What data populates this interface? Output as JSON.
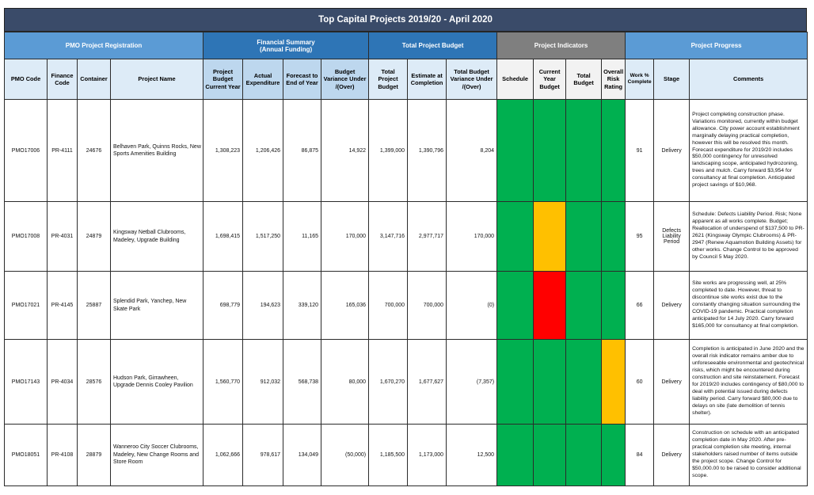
{
  "title": "Top Capital Projects 2019/20 - April 2020",
  "groups": {
    "pmo": "PMO Project Registration",
    "financial": "Financial Summary\n(Annual Funding)",
    "total_budget": "Total Project Budget",
    "indicators": "Project Indicators",
    "progress": "Project Progress"
  },
  "columns": {
    "pmo_code": "PMO Code",
    "finance_code": "Finance Code",
    "container": "Container",
    "project_name": "Project Name",
    "project_budget": "Project Budget Current Year",
    "actual_expenditure": "Actual Expenditure",
    "forecast": "Forecast to End of Year",
    "budget_variance": "Budget Variance Under /(Over)",
    "total_project_budget": "Total Project Budget",
    "estimate": "Estimate at Completion",
    "total_variance": "Total Budget Variance Under /(Over)",
    "schedule": "Schedule",
    "current_year_budget": "Current Year Budget",
    "total_budget": "Total Budget",
    "overall_risk": "Overall Risk Rating",
    "work_complete": "Work % Complete",
    "stage": "Stage",
    "comments": "Comments"
  },
  "colors": {
    "green": "#00b050",
    "amber": "#ffc000",
    "red": "#ff0000"
  },
  "rows": [
    {
      "pmo_code": "PMO17006",
      "finance_code": "PR-4111",
      "container": "24676",
      "project_name": "Belhaven Park, Quinns Rocks, New Sports Amenities Building",
      "project_budget": "1,308,223",
      "actual_expenditure": "1,206,426",
      "forecast": "86,875",
      "budget_variance": "14,922",
      "total_project_budget": "1,399,000",
      "estimate": "1,390,796",
      "total_variance": "8,204",
      "schedule": "green",
      "current_year_budget": "green",
      "total_budget": "green",
      "overall_risk": "green",
      "work_complete": "91",
      "stage": "Delivery",
      "comments": "Project completing construction phase. Variations monitored, currently within budget allowance. City power account establishment marginally delaying practical completion, however this will be resolved this month. Forecast expenditure for 2019/20 includes $50,000 contingency for unresolved landscaping scope, anticipated hydrozoning, trees and mulch. Carry forward $3,954 for consultancy at final completion. Anticipated project savings of $10,968."
    },
    {
      "pmo_code": "PMO17008",
      "finance_code": "PR-4031",
      "container": "24879",
      "project_name": "Kingsway Netball Clubrooms, Madeley, Upgrade Building",
      "project_budget": "1,698,415",
      "actual_expenditure": "1,517,250",
      "forecast": "11,165",
      "budget_variance": "170,000",
      "total_project_budget": "3,147,716",
      "estimate": "2,977,717",
      "total_variance": "170,000",
      "schedule": "green",
      "current_year_budget": "amber",
      "total_budget": "green",
      "overall_risk": "green",
      "work_complete": "95",
      "stage": "Defects Liability Period",
      "comments": "Schedule: Defects Liability Period. Risk; None apparent as all works complete. Budget; Reallocation of underspend of $137,500 to PR-2621 (Kingsway Olympic Clubrooms) & PR-2947 (Renew Aquamotion Building Assets) for other works. Change Control to be approved by Council 5 May 2020."
    },
    {
      "pmo_code": "PMO17021",
      "finance_code": "PR-4145",
      "container": "25887",
      "project_name": "Splendid Park, Yanchep, New Skate Park",
      "project_budget": "698,779",
      "actual_expenditure": "194,623",
      "forecast": "339,120",
      "budget_variance": "165,036",
      "total_project_budget": "700,000",
      "estimate": "700,000",
      "total_variance": "(0)",
      "schedule": "green",
      "current_year_budget": "red",
      "total_budget": "green",
      "overall_risk": "green",
      "work_complete": "66",
      "stage": "Delivery",
      "comments": "Site works are progressing well, at 25% completed to date. However, threat to discontinue site works exist due to the constantly changing situation surrounding the COVID-19 pandemic. Practical completion anticipated for 14 July 2020. Carry forward $165,000 for consultancy at final completion."
    },
    {
      "pmo_code": "PMO17143",
      "finance_code": "PR-4034",
      "container": "28576",
      "project_name": "Hudson Park, Girrawheen, Upgrade Dennis Cooley Pavilion",
      "project_budget": "1,560,770",
      "actual_expenditure": "912,032",
      "forecast": "568,738",
      "budget_variance": "80,000",
      "total_project_budget": "1,670,270",
      "estimate": "1,677,627",
      "total_variance": "(7,357)",
      "schedule": "green",
      "current_year_budget": "green",
      "total_budget": "green",
      "overall_risk": "amber",
      "work_complete": "60",
      "stage": "Delivery",
      "comments": "Completion is anticipated in June 2020 and the overall risk indicator remains amber due to unforeseeable environmental and geotechnical risks, which might be encountered during construction and site reinstatement. Forecast for 2019/20 includes contingency of $80,000 to deal with potential issued during defects liability period. Carry forward $80,000 due to delays on site (late demolition of tennis shelter)."
    },
    {
      "pmo_code": "PMO18051",
      "finance_code": "PR-4108",
      "container": "28879",
      "project_name": "Wanneroo City Soccer Clubrooms, Madeley, New Change Rooms and Store Room",
      "project_budget": "1,062,666",
      "actual_expenditure": "978,617",
      "forecast": "134,049",
      "budget_variance": "(50,000)",
      "total_project_budget": "1,185,500",
      "estimate": "1,173,000",
      "total_variance": "12,500",
      "schedule": "green",
      "current_year_budget": "green",
      "total_budget": "green",
      "overall_risk": "green",
      "work_complete": "84",
      "stage": "Delivery",
      "comments": "Construction on schedule with an anticipated completion date in May 2020. After pre-practical completion site meeting, internal stakeholders raised number of items outside the project scope. Change Control for $50,000.00 to be raised to consider additional scope."
    }
  ]
}
